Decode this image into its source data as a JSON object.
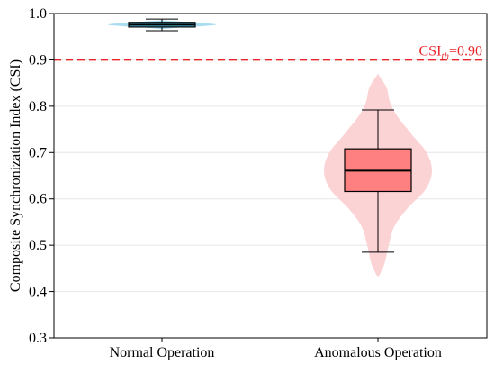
{
  "chart_data": {
    "type": "violin-box",
    "ylabel": "Composite Synchronization Index (CSI)",
    "xlabel": "",
    "ylim": [
      0.3,
      1.0
    ],
    "yticks": [
      "0.3",
      "0.4",
      "0.5",
      "0.6",
      "0.7",
      "0.8",
      "0.9",
      "1.0"
    ],
    "grid": true,
    "categories": [
      "Normal Operation",
      "Anomalous Operation"
    ],
    "threshold": {
      "value": 0.9,
      "label_main": "CSI",
      "label_sub": "th",
      "label_value": "=0.90",
      "color": "#e8262a"
    },
    "groups": [
      {
        "category": "Normal Operation",
        "violin_color": "#a9dcef",
        "box_color": "#46b0cf",
        "whisker_low": 0.963,
        "q1": 0.971,
        "median": 0.976,
        "q3": 0.981,
        "whisker_high": 0.988,
        "violin_min": 0.967,
        "violin_max": 0.985,
        "violin_profile": [
          [
            0.967,
            0.05
          ],
          [
            0.97,
            0.35
          ],
          [
            0.973,
            0.75
          ],
          [
            0.976,
            1.0
          ],
          [
            0.979,
            0.8
          ],
          [
            0.982,
            0.45
          ],
          [
            0.985,
            0.05
          ]
        ]
      },
      {
        "category": "Anomalous Operation",
        "violin_color": "#fcd3d4",
        "box_color": "#fe8081",
        "whisker_low": 0.485,
        "q1": 0.616,
        "median": 0.661,
        "q3": 0.708,
        "whisker_high": 0.792,
        "violin_min": 0.434,
        "violin_max": 0.868,
        "violin_profile": [
          [
            0.434,
            0.02
          ],
          [
            0.46,
            0.12
          ],
          [
            0.5,
            0.2
          ],
          [
            0.54,
            0.3
          ],
          [
            0.58,
            0.55
          ],
          [
            0.62,
            0.88
          ],
          [
            0.66,
            1.0
          ],
          [
            0.7,
            0.9
          ],
          [
            0.74,
            0.62
          ],
          [
            0.78,
            0.35
          ],
          [
            0.81,
            0.22
          ],
          [
            0.84,
            0.16
          ],
          [
            0.868,
            0.01
          ]
        ]
      }
    ]
  }
}
